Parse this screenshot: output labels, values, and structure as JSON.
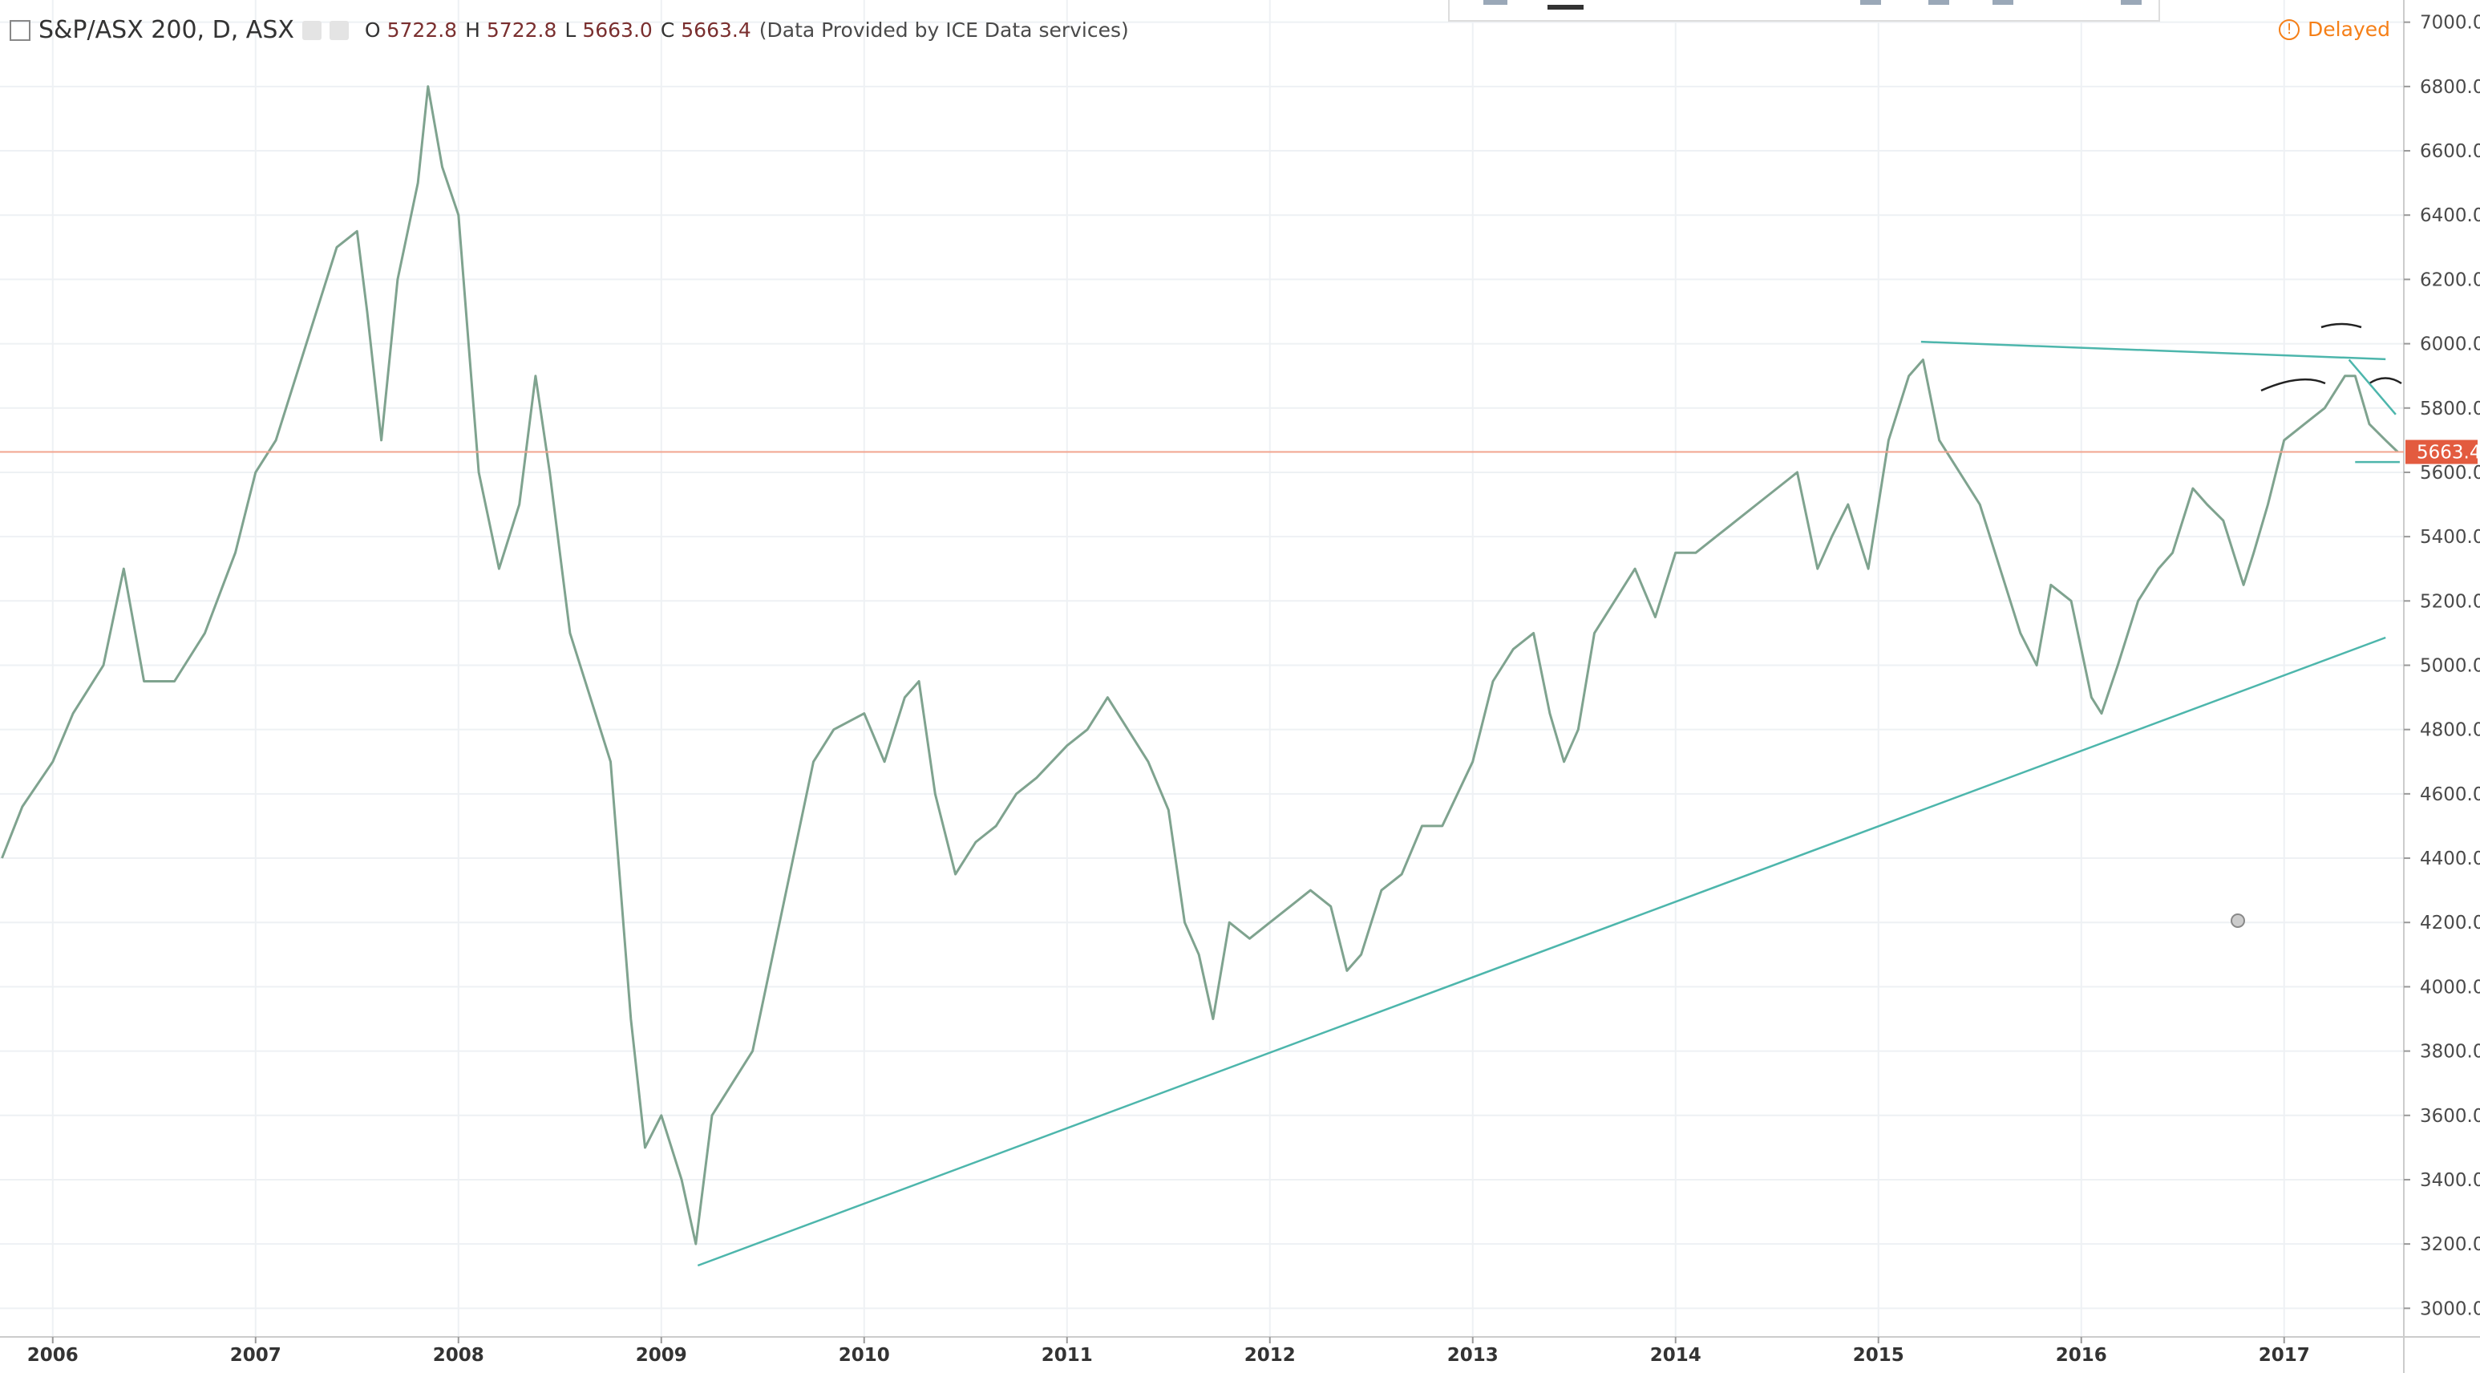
{
  "chart_data": {
    "type": "line",
    "title": "S&P/ASX 200, D, ASX",
    "ohlc": [
      {
        "label": "O",
        "value": "5722.8"
      },
      {
        "label": "H",
        "value": "5722.8"
      },
      {
        "label": "L",
        "value": "5663.0"
      },
      {
        "label": "C",
        "value": "5663.4"
      }
    ],
    "source": "(Data Provided by ICE Data services)",
    "status": "Delayed",
    "x": [
      2005.75,
      2005.85,
      2006.0,
      2006.1,
      2006.25,
      2006.35,
      2006.45,
      2006.6,
      2006.75,
      2006.9,
      2007.0,
      2007.1,
      2007.2,
      2007.3,
      2007.4,
      2007.5,
      2007.55,
      2007.62,
      2007.7,
      2007.8,
      2007.85,
      2007.92,
      2008.0,
      2008.05,
      2008.1,
      2008.2,
      2008.3,
      2008.38,
      2008.45,
      2008.55,
      2008.65,
      2008.75,
      2008.8,
      2008.85,
      2008.92,
      2009.0,
      2009.1,
      2009.17,
      2009.25,
      2009.35,
      2009.45,
      2009.55,
      2009.65,
      2009.75,
      2009.85,
      2010.0,
      2010.1,
      2010.2,
      2010.27,
      2010.35,
      2010.45,
      2010.55,
      2010.65,
      2010.75,
      2010.85,
      2011.0,
      2011.1,
      2011.2,
      2011.3,
      2011.4,
      2011.5,
      2011.58,
      2011.65,
      2011.72,
      2011.8,
      2011.9,
      2012.0,
      2012.1,
      2012.2,
      2012.3,
      2012.38,
      2012.45,
      2012.55,
      2012.65,
      2012.75,
      2012.85,
      2013.0,
      2013.1,
      2013.2,
      2013.3,
      2013.38,
      2013.45,
      2013.52,
      2013.6,
      2013.7,
      2013.8,
      2013.9,
      2014.0,
      2014.1,
      2014.2,
      2014.3,
      2014.4,
      2014.5,
      2014.6,
      2014.7,
      2014.77,
      2014.85,
      2014.95,
      2015.05,
      2015.15,
      2015.22,
      2015.3,
      2015.4,
      2015.5,
      2015.6,
      2015.7,
      2015.78,
      2015.85,
      2015.95,
      2016.05,
      2016.1,
      2016.18,
      2016.28,
      2016.38,
      2016.45,
      2016.55,
      2016.62,
      2016.7,
      2016.8,
      2016.85,
      2016.92,
      2017.0,
      2017.1,
      2017.2,
      2017.3,
      2017.35,
      2017.42,
      2017.5,
      2017.56
    ],
    "values": [
      4400,
      4560,
      4700,
      4850,
      5000,
      5300,
      4950,
      4950,
      5100,
      5350,
      5600,
      5700,
      5900,
      6100,
      6300,
      6350,
      6100,
      5700,
      6200,
      6500,
      6800,
      6550,
      6400,
      6000,
      5600,
      5300,
      5500,
      5900,
      5600,
      5100,
      4900,
      4700,
      4300,
      3900,
      3500,
      3600,
      3400,
      3200,
      3600,
      3700,
      3800,
      4100,
      4400,
      4700,
      4800,
      4850,
      4700,
      4900,
      4950,
      4600,
      4350,
      4450,
      4500,
      4600,
      4650,
      4750,
      4800,
      4900,
      4800,
      4700,
      4550,
      4200,
      4100,
      3900,
      4200,
      4150,
      4200,
      4250,
      4300,
      4250,
      4050,
      4100,
      4300,
      4350,
      4500,
      4500,
      4700,
      4950,
      5050,
      5100,
      4850,
      4700,
      4800,
      5100,
      5200,
      5300,
      5150,
      5350,
      5350,
      5400,
      5450,
      5500,
      5550,
      5600,
      5300,
      5400,
      5500,
      5300,
      5700,
      5900,
      5950,
      5700,
      5600,
      5500,
      5300,
      5100,
      5000,
      5250,
      5200,
      4900,
      4850,
      5000,
      5200,
      5300,
      5350,
      5550,
      5500,
      5450,
      5250,
      5350,
      5500,
      5700,
      5750,
      5800,
      5900,
      5900,
      5750,
      5700,
      5663.4
    ],
    "color": "#7fa38f",
    "last_price": 5663.4,
    "trendlines": [
      {
        "x": [
          2009.18,
          2017.5
        ],
        "y": [
          3133,
          5086
        ]
      },
      {
        "x": [
          2015.21,
          2017.5
        ],
        "y": [
          6006,
          5952
        ]
      },
      {
        "x": [
          2017.32,
          2017.55
        ],
        "y": [
          5950,
          5780
        ]
      },
      {
        "x": [
          2017.35,
          2017.57
        ],
        "y": [
          5632,
          5632
        ]
      }
    ],
    "xlim": [
      2005.74,
      2017.59
    ],
    "xticks": [
      2006,
      2007,
      2008,
      2009,
      2010,
      2011,
      2012,
      2013,
      2014,
      2015,
      2016,
      2017
    ],
    "ylim": [
      2911,
      7069
    ],
    "yticks": [
      {
        "value": 3000,
        "label": "3000.0"
      },
      {
        "value": 3200,
        "label": "3200.0"
      },
      {
        "value": 3400,
        "label": "3400.0"
      },
      {
        "value": 3600,
        "label": "3600.0"
      },
      {
        "value": 3800,
        "label": "3800.0"
      },
      {
        "value": 4000,
        "label": "4000.0"
      },
      {
        "value": 4200,
        "label": "4200.0"
      },
      {
        "value": 4400,
        "label": "4400.0"
      },
      {
        "value": 4600,
        "label": "4600.0"
      },
      {
        "value": 4800,
        "label": "4800.0"
      },
      {
        "value": 5000,
        "label": "5000.0"
      },
      {
        "value": 5200,
        "label": "5200.0"
      },
      {
        "value": 5400,
        "label": "5400.0"
      },
      {
        "value": 5600,
        "label": "5600.0"
      },
      {
        "value": 5800,
        "label": "5800.0"
      },
      {
        "value": 6000,
        "label": "6000.0"
      },
      {
        "value": 6200,
        "label": "6200.0"
      },
      {
        "value": 6400,
        "label": "6400.0"
      },
      {
        "value": 6600,
        "label": "6600.0"
      },
      {
        "value": 6800,
        "label": "6800.0"
      },
      {
        "value": 7000,
        "label": "7000.0"
      }
    ],
    "grid": true
  }
}
